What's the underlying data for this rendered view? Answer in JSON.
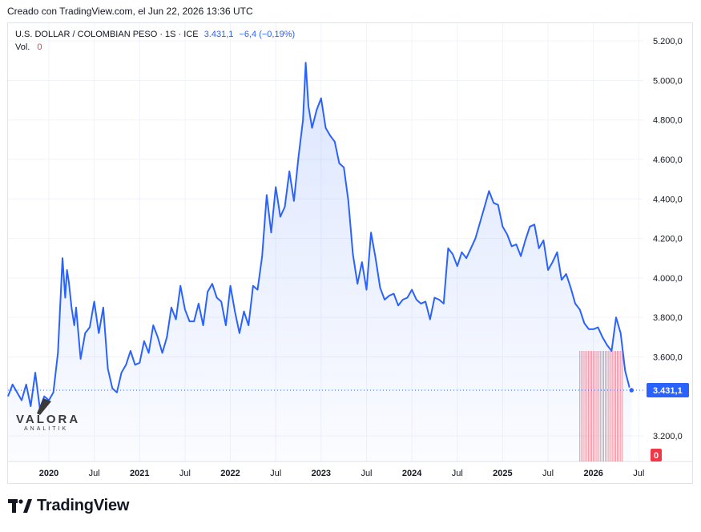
{
  "header": {
    "created": "Creado con TradingView.com, el Jun 22, 2026 13:36 UTC"
  },
  "legend": {
    "symbol": "U.S. DOLLAR / COLOMBIAN PESO · 1S · ICE",
    "last": "3.431,1",
    "change": "−6,4 (−0,19%)",
    "vol_label": "Vol.",
    "vol_value": "0"
  },
  "brand": {
    "name": "TradingView"
  },
  "watermark": {
    "title": "VALORA",
    "subtitle": "ANALITIK"
  },
  "colors": {
    "line": "#2962ff",
    "fill": "#2962ff",
    "volume": "#f23645",
    "grid": "#f0f3fa"
  },
  "chart_data": {
    "type": "area",
    "y_ticks": [
      "5.200,0",
      "5.000,0",
      "4.800,0",
      "4.600,0",
      "4.400,0",
      "4.200,0",
      "4.000,0",
      "3.800,0",
      "3.600,0",
      "3.200,0"
    ],
    "y_tick_values": [
      5200,
      5000,
      4800,
      4600,
      4400,
      4200,
      4000,
      3800,
      3600,
      3200
    ],
    "x_ticks": [
      "2020",
      "Jul",
      "2021",
      "Jul",
      "2022",
      "Jul",
      "2023",
      "Jul",
      "2024",
      "Jul",
      "2025",
      "Jul",
      "2026",
      "Jul"
    ],
    "x_tick_values": [
      2020.0,
      2020.5,
      2021.0,
      2021.5,
      2022.0,
      2022.5,
      2023.0,
      2023.5,
      2024.0,
      2024.5,
      2025.0,
      2025.5,
      2026.0,
      2026.5
    ],
    "xlim": [
      2019.55,
      2026.55
    ],
    "ylim": [
      3070,
      5290
    ],
    "last_label": "3.431,1",
    "last_value": 3431.1,
    "volume_label": "0",
    "series": [
      {
        "x": [
          2019.55,
          2019.6,
          2019.65,
          2019.7,
          2019.75,
          2019.8,
          2019.85,
          2019.9,
          2019.95,
          2020.0,
          2020.05,
          2020.1,
          2020.15,
          2020.18,
          2020.2,
          2020.22,
          2020.25,
          2020.28,
          2020.3,
          2020.35,
          2020.4,
          2020.45,
          2020.5,
          2020.55,
          2020.6,
          2020.65,
          2020.7,
          2020.75,
          2020.8,
          2020.85,
          2020.9,
          2020.95,
          2021.0,
          2021.05,
          2021.1,
          2021.15,
          2021.2,
          2021.25,
          2021.3,
          2021.35,
          2021.4,
          2021.45,
          2021.5,
          2021.55,
          2021.6,
          2021.65,
          2021.7,
          2021.75,
          2021.8,
          2021.85,
          2021.9,
          2021.95,
          2022.0,
          2022.05,
          2022.1,
          2022.15,
          2022.2,
          2022.25,
          2022.3,
          2022.35,
          2022.4,
          2022.45,
          2022.5,
          2022.55,
          2022.6,
          2022.65,
          2022.7,
          2022.75,
          2022.8,
          2022.83,
          2022.86,
          2022.9,
          2022.95,
          2023.0,
          2023.05,
          2023.1,
          2023.15,
          2023.2,
          2023.25,
          2023.3,
          2023.35,
          2023.4,
          2023.45,
          2023.5,
          2023.55,
          2023.6,
          2023.65,
          2023.7,
          2023.75,
          2023.8,
          2023.85,
          2023.9,
          2023.95,
          2024.0,
          2024.05,
          2024.1,
          2024.15,
          2024.2,
          2024.25,
          2024.3,
          2024.35,
          2024.4,
          2024.45,
          2024.5,
          2024.55,
          2024.6,
          2024.65,
          2024.7,
          2024.75,
          2024.8,
          2024.85,
          2024.9,
          2024.95,
          2025.0,
          2025.05,
          2025.1,
          2025.15,
          2025.2,
          2025.25,
          2025.3,
          2025.35,
          2025.4,
          2025.45,
          2025.5,
          2025.55,
          2025.6,
          2025.65,
          2025.7,
          2025.75,
          2025.8,
          2025.85,
          2025.9,
          2025.95,
          2026.0,
          2026.05,
          2026.1,
          2026.15,
          2026.2,
          2026.25,
          2026.3,
          2026.35,
          2026.4,
          2026.42
        ],
        "y": [
          3400,
          3460,
          3420,
          3380,
          3460,
          3350,
          3520,
          3340,
          3400,
          3380,
          3420,
          3620,
          4100,
          3900,
          4040,
          3980,
          3850,
          3760,
          3850,
          3590,
          3720,
          3750,
          3880,
          3720,
          3850,
          3540,
          3440,
          3420,
          3520,
          3560,
          3630,
          3560,
          3570,
          3680,
          3620,
          3760,
          3700,
          3620,
          3700,
          3850,
          3790,
          3960,
          3840,
          3780,
          3780,
          3870,
          3760,
          3930,
          3970,
          3900,
          3880,
          3760,
          3960,
          3830,
          3720,
          3830,
          3760,
          3960,
          3940,
          4110,
          4420,
          4230,
          4460,
          4310,
          4360,
          4540,
          4390,
          4610,
          4800,
          5090,
          4870,
          4760,
          4850,
          4910,
          4760,
          4720,
          4690,
          4580,
          4560,
          4390,
          4120,
          3970,
          4080,
          3940,
          4230,
          4100,
          3950,
          3890,
          3910,
          3920,
          3860,
          3890,
          3900,
          3940,
          3890,
          3870,
          3880,
          3790,
          3900,
          3890,
          3870,
          4150,
          4120,
          4060,
          4130,
          4100,
          4150,
          4200,
          4280,
          4360,
          4440,
          4380,
          4370,
          4260,
          4220,
          4160,
          4170,
          4110,
          4190,
          4260,
          4270,
          4150,
          4190,
          4040,
          4080,
          4130,
          3990,
          4020,
          3950,
          3870,
          3840,
          3770,
          3740,
          3740,
          3750,
          3700,
          3660,
          3630,
          3800,
          3720,
          3530,
          3440,
          3431.1
        ]
      }
    ],
    "volume": {
      "x_start": 2025.85,
      "x_end": 2026.32,
      "bars": 26,
      "top_value": 3630
    }
  }
}
